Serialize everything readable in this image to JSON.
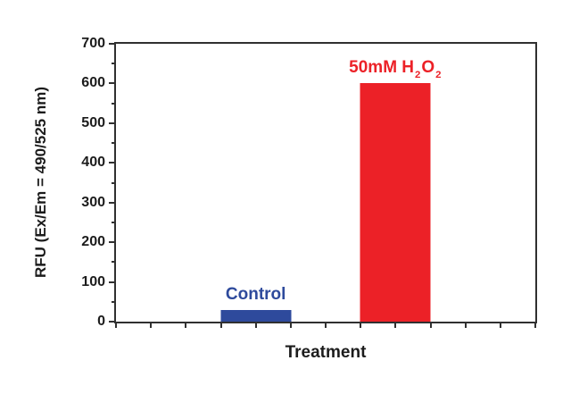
{
  "figure": {
    "background": "#ffffff",
    "axis_color": "#303030",
    "text_color": "#1c1c1c"
  },
  "chart_data": {
    "type": "bar",
    "title": "",
    "xlabel": "Treatment",
    "ylabel": "RFU (Ex/Em = 490/525 nm)",
    "ylim": [
      0,
      700
    ],
    "yticks": [
      0,
      100,
      200,
      300,
      400,
      500,
      600,
      700
    ],
    "y_minor_tick_interval": 50,
    "x_minor_tick_count": 13,
    "grid": false,
    "legend": "none",
    "categories": [
      "Control",
      "50mM H2O2"
    ],
    "values": [
      30,
      600
    ],
    "bars": [
      {
        "label": "Control",
        "value": 30,
        "color": "#2e4a9c",
        "label_color": "#2e4a9c",
        "label_parts": [
          {
            "t": "Control",
            "sub": false
          }
        ]
      },
      {
        "label": "50mM H2O2",
        "value": 600,
        "color": "#ec2127",
        "label_color": "#ec2127",
        "label_parts": [
          {
            "t": "50mM H",
            "sub": false
          },
          {
            "t": "2",
            "sub": true
          },
          {
            "t": "O",
            "sub": false
          },
          {
            "t": "2",
            "sub": true
          }
        ]
      }
    ]
  }
}
